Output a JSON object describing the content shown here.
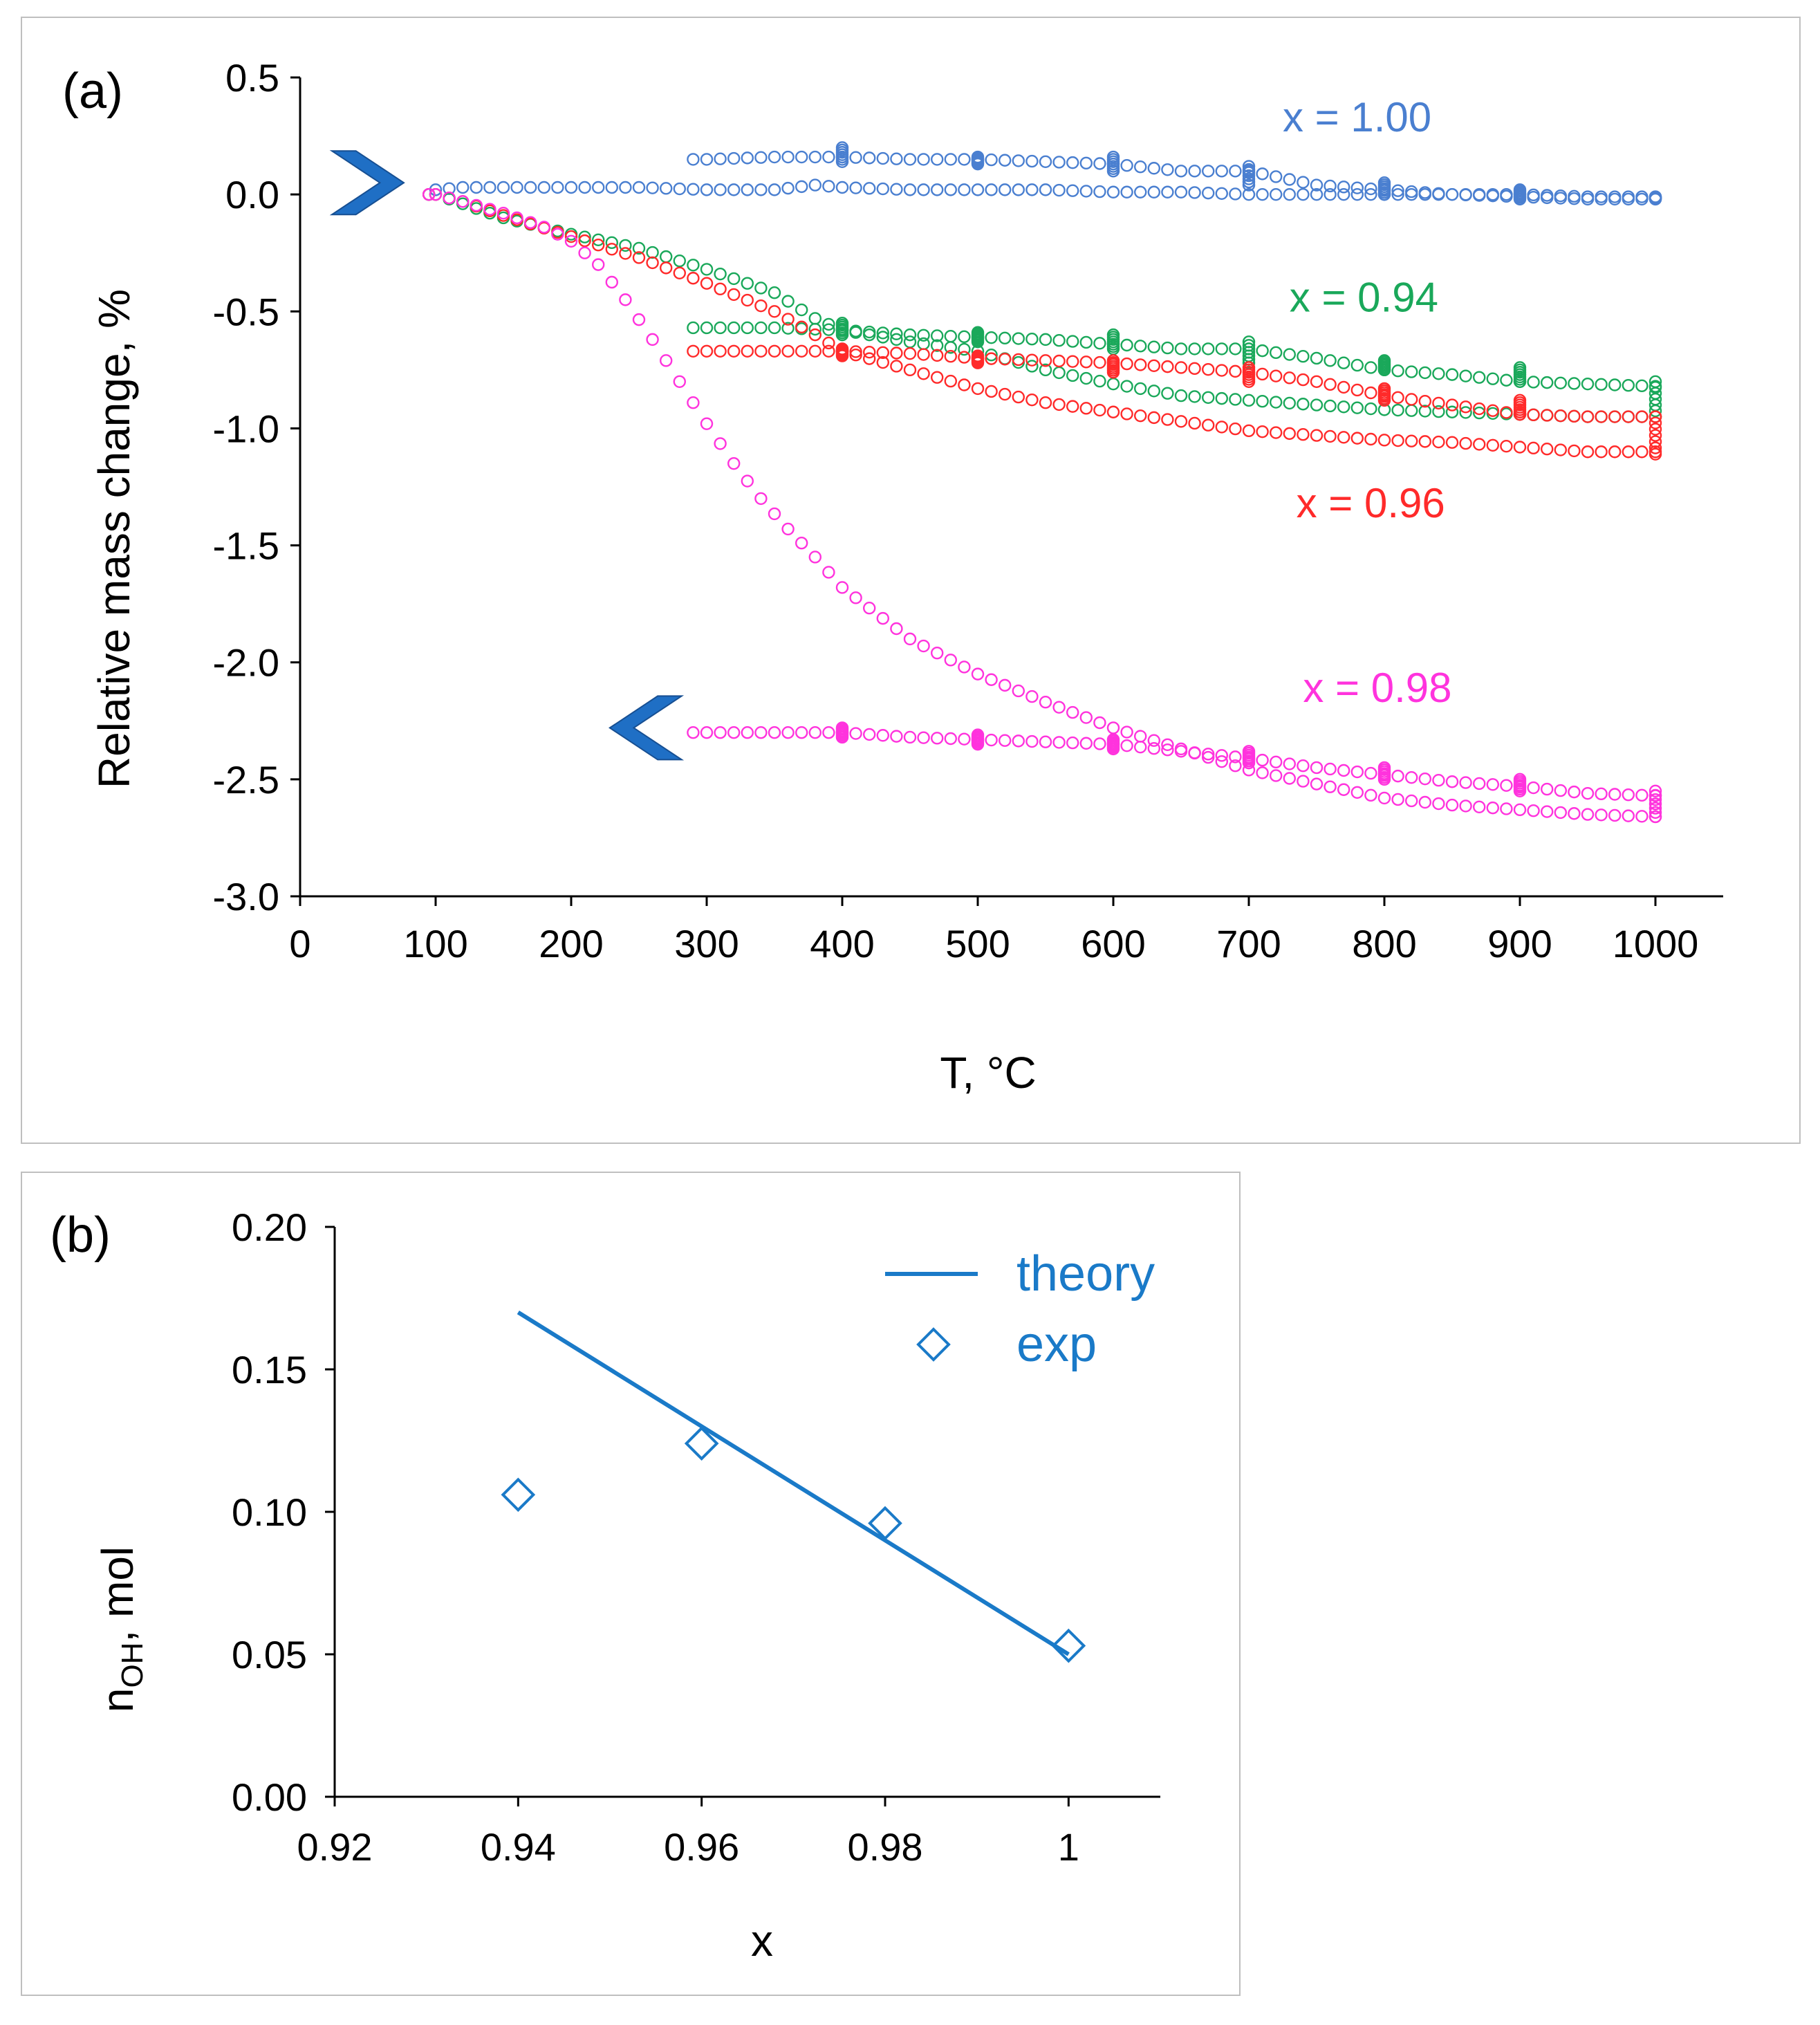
{
  "chart_data": [
    {
      "type": "scatter",
      "panel_label": "(a)",
      "xlabel": "T, °C",
      "ylabel": "Relative mass change, %",
      "xlim": [
        0,
        1050
      ],
      "ylim": [
        -3.0,
        0.5
      ],
      "xticks": [
        0,
        100,
        200,
        300,
        400,
        500,
        600,
        700,
        800,
        900,
        1000
      ],
      "yticks": [
        0.5,
        0.0,
        -0.5,
        -1.0,
        -1.5,
        -2.0,
        -2.5,
        -3.0
      ],
      "ytick_labels": [
        "0.5",
        "0.0",
        "-0.5",
        "-1.0",
        "-1.5",
        "-2.0",
        "-2.5",
        "-3.0"
      ],
      "marker": "open-circle",
      "arrows": [
        {
          "name": "heating-start",
          "direction": "right",
          "x": 50,
          "y": 0.05,
          "color": "#1f6fc5"
        },
        {
          "name": "cooling-end",
          "direction": "left",
          "x": 255,
          "y": -2.28,
          "color": "#1f6fc5"
        }
      ],
      "series": [
        {
          "name": "x = 1.00",
          "color": "#4a7fd0",
          "label_pos": {
            "x": 725,
            "y": 0.27
          },
          "heating": [
            [
              95,
              0.0
            ],
            [
              100,
              0.02
            ],
            [
              120,
              0.03
            ],
            [
              150,
              0.03
            ],
            [
              200,
              0.03
            ],
            [
              250,
              0.03
            ],
            [
              300,
              0.02
            ],
            [
              350,
              0.02
            ],
            [
              380,
              0.04
            ],
            [
              400,
              0.03
            ],
            [
              450,
              0.02
            ],
            [
              500,
              0.02
            ],
            [
              550,
              0.02
            ],
            [
              600,
              0.01
            ],
            [
              650,
              0.01
            ],
            [
              700,
              0.0
            ],
            [
              750,
              0.0
            ],
            [
              800,
              0.0
            ],
            [
              850,
              0.0
            ],
            [
              900,
              -0.01
            ],
            [
              950,
              -0.02
            ],
            [
              1000,
              -0.02
            ]
          ],
          "isotherms": [
            [
              1000,
              -0.02,
              -0.01
            ]
          ],
          "cooling": [
            [
              1000,
              -0.01
            ],
            [
              950,
              -0.01
            ],
            [
              900,
              0.0
            ],
            [
              850,
              0.0
            ],
            [
              800,
              0.02
            ],
            [
              750,
              0.04
            ],
            [
              700,
              0.1
            ],
            [
              650,
              0.1
            ],
            [
              600,
              0.13
            ],
            [
              550,
              0.14
            ],
            [
              500,
              0.15
            ],
            [
              450,
              0.15
            ],
            [
              400,
              0.16
            ],
            [
              350,
              0.16
            ],
            [
              300,
              0.15
            ],
            [
              290,
              0.15
            ]
          ],
          "cooling_isotherms": [
            [
              900,
              -0.02,
              0.02
            ],
            [
              800,
              0.0,
              0.05
            ],
            [
              700,
              0.04,
              0.12
            ],
            [
              600,
              0.1,
              0.16
            ],
            [
              500,
              0.13,
              0.16
            ],
            [
              400,
              0.14,
              0.2
            ]
          ]
        },
        {
          "name": "x = 0.94",
          "color": "#1aa85a",
          "label_pos": {
            "x": 730,
            "y": -0.5
          },
          "heating": [
            [
              95,
              0.0
            ],
            [
              100,
              0.0
            ],
            [
              120,
              -0.04
            ],
            [
              150,
              -0.1
            ],
            [
              200,
              -0.17
            ],
            [
              250,
              -0.23
            ],
            [
              300,
              -0.32
            ],
            [
              350,
              -0.42
            ],
            [
              380,
              -0.53
            ],
            [
              400,
              -0.58
            ],
            [
              450,
              -0.63
            ],
            [
              500,
              -0.67
            ],
            [
              550,
              -0.75
            ],
            [
              600,
              -0.81
            ],
            [
              650,
              -0.86
            ],
            [
              700,
              -0.88
            ],
            [
              750,
              -0.9
            ],
            [
              800,
              -0.92
            ],
            [
              850,
              -0.93
            ],
            [
              900,
              -0.94
            ],
            [
              950,
              -0.95
            ],
            [
              1000,
              -0.95
            ]
          ],
          "isotherms": [
            [
              1000,
              -0.95,
              -0.8
            ]
          ],
          "cooling": [
            [
              1000,
              -0.82
            ],
            [
              950,
              -0.81
            ],
            [
              900,
              -0.8
            ],
            [
              850,
              -0.77
            ],
            [
              800,
              -0.75
            ],
            [
              750,
              -0.7
            ],
            [
              700,
              -0.66
            ],
            [
              650,
              -0.66
            ],
            [
              600,
              -0.64
            ],
            [
              550,
              -0.62
            ],
            [
              500,
              -0.61
            ],
            [
              450,
              -0.6
            ],
            [
              400,
              -0.58
            ],
            [
              350,
              -0.57
            ],
            [
              300,
              -0.57
            ],
            [
              290,
              -0.57
            ]
          ],
          "cooling_isotherms": [
            [
              900,
              -0.8,
              -0.74
            ],
            [
              800,
              -0.75,
              -0.71
            ],
            [
              700,
              -0.72,
              -0.63
            ],
            [
              600,
              -0.66,
              -0.6
            ],
            [
              500,
              -0.63,
              -0.59
            ],
            [
              400,
              -0.6,
              -0.55
            ]
          ]
        },
        {
          "name": "x = 0.96",
          "color": "#ff2a2a",
          "label_pos": {
            "x": 735,
            "y": -1.38
          },
          "heating": [
            [
              95,
              0.0
            ],
            [
              100,
              0.0
            ],
            [
              120,
              -0.03
            ],
            [
              150,
              -0.09
            ],
            [
              200,
              -0.18
            ],
            [
              250,
              -0.27
            ],
            [
              300,
              -0.38
            ],
            [
              350,
              -0.5
            ],
            [
              380,
              -0.6
            ],
            [
              400,
              -0.67
            ],
            [
              450,
              -0.75
            ],
            [
              500,
              -0.83
            ],
            [
              550,
              -0.89
            ],
            [
              600,
              -0.93
            ],
            [
              650,
              -0.97
            ],
            [
              700,
              -1.01
            ],
            [
              750,
              -1.03
            ],
            [
              800,
              -1.05
            ],
            [
              850,
              -1.06
            ],
            [
              900,
              -1.08
            ],
            [
              950,
              -1.1
            ],
            [
              1000,
              -1.1
            ]
          ],
          "isotherms": [
            [
              1000,
              -1.11,
              -0.95
            ]
          ],
          "cooling": [
            [
              1000,
              -0.95
            ],
            [
              950,
              -0.95
            ],
            [
              900,
              -0.94
            ],
            [
              850,
              -0.9
            ],
            [
              800,
              -0.86
            ],
            [
              750,
              -0.8
            ],
            [
              700,
              -0.76
            ],
            [
              650,
              -0.74
            ],
            [
              600,
              -0.72
            ],
            [
              550,
              -0.71
            ],
            [
              500,
              -0.7
            ],
            [
              450,
              -0.68
            ],
            [
              400,
              -0.67
            ],
            [
              350,
              -0.67
            ],
            [
              300,
              -0.67
            ],
            [
              290,
              -0.67
            ]
          ],
          "cooling_isotherms": [
            [
              900,
              -0.94,
              -0.88
            ],
            [
              800,
              -0.88,
              -0.83
            ],
            [
              700,
              -0.8,
              -0.74
            ],
            [
              600,
              -0.76,
              -0.71
            ],
            [
              500,
              -0.72,
              -0.69
            ],
            [
              400,
              -0.69,
              -0.66
            ]
          ]
        },
        {
          "name": "x = 0.98",
          "color": "#ff33dd",
          "label_pos": {
            "x": 740,
            "y": -2.17
          },
          "heating": [
            [
              95,
              0.0
            ],
            [
              100,
              0.0
            ],
            [
              120,
              -0.03
            ],
            [
              150,
              -0.08
            ],
            [
              180,
              -0.14
            ],
            [
              200,
              -0.2
            ],
            [
              220,
              -0.3
            ],
            [
              240,
              -0.45
            ],
            [
              260,
              -0.62
            ],
            [
              280,
              -0.8
            ],
            [
              300,
              -0.98
            ],
            [
              320,
              -1.15
            ],
            [
              340,
              -1.3
            ],
            [
              360,
              -1.43
            ],
            [
              380,
              -1.55
            ],
            [
              400,
              -1.68
            ],
            [
              450,
              -1.9
            ],
            [
              500,
              -2.05
            ],
            [
              550,
              -2.17
            ],
            [
              600,
              -2.28
            ],
            [
              650,
              -2.37
            ],
            [
              700,
              -2.46
            ],
            [
              750,
              -2.52
            ],
            [
              800,
              -2.58
            ],
            [
              850,
              -2.61
            ],
            [
              900,
              -2.63
            ],
            [
              950,
              -2.65
            ],
            [
              1000,
              -2.66
            ]
          ],
          "isotherms": [
            [
              1000,
              -2.66,
              -2.55
            ]
          ],
          "cooling": [
            [
              1000,
              -2.57
            ],
            [
              950,
              -2.56
            ],
            [
              900,
              -2.53
            ],
            [
              850,
              -2.51
            ],
            [
              800,
              -2.48
            ],
            [
              750,
              -2.45
            ],
            [
              700,
              -2.41
            ],
            [
              650,
              -2.38
            ],
            [
              600,
              -2.35
            ],
            [
              550,
              -2.34
            ],
            [
              500,
              -2.33
            ],
            [
              450,
              -2.32
            ],
            [
              400,
              -2.3
            ],
            [
              350,
              -2.3
            ],
            [
              300,
              -2.3
            ],
            [
              290,
              -2.3
            ]
          ],
          "cooling_isotherms": [
            [
              900,
              -2.55,
              -2.5
            ],
            [
              800,
              -2.5,
              -2.45
            ],
            [
              700,
              -2.43,
              -2.38
            ],
            [
              600,
              -2.37,
              -2.33
            ],
            [
              500,
              -2.35,
              -2.31
            ],
            [
              400,
              -2.32,
              -2.28
            ]
          ]
        }
      ]
    },
    {
      "type": "scatter",
      "panel_label": "(b)",
      "xlabel": "x",
      "ylabel_main": "n",
      "ylabel_sub": "OH",
      "ylabel_rest": ", mol",
      "xlim": [
        0.92,
        1.01
      ],
      "ylim": [
        0.0,
        0.2
      ],
      "xticks": [
        0.92,
        0.94,
        0.96,
        0.98,
        1.0
      ],
      "xtick_labels": [
        "0.92",
        "0.94",
        "0.96",
        "0.98",
        "1"
      ],
      "yticks": [
        0.0,
        0.05,
        0.1,
        0.15,
        0.2
      ],
      "ytick_labels": [
        "0.00",
        "0.05",
        "0.10",
        "0.15",
        "0.20"
      ],
      "color": "#1a7ac8",
      "series": [
        {
          "name": "theory",
          "kind": "line",
          "x": [
            0.94,
            1.0
          ],
          "y": [
            0.17,
            0.05
          ]
        },
        {
          "name": "exp",
          "kind": "open-diamond",
          "x": [
            0.94,
            0.96,
            0.98,
            1.0
          ],
          "y": [
            0.106,
            0.124,
            0.096,
            0.053
          ]
        }
      ],
      "legend": {
        "location": "top-right",
        "entries": [
          "theory",
          "exp"
        ]
      }
    }
  ]
}
